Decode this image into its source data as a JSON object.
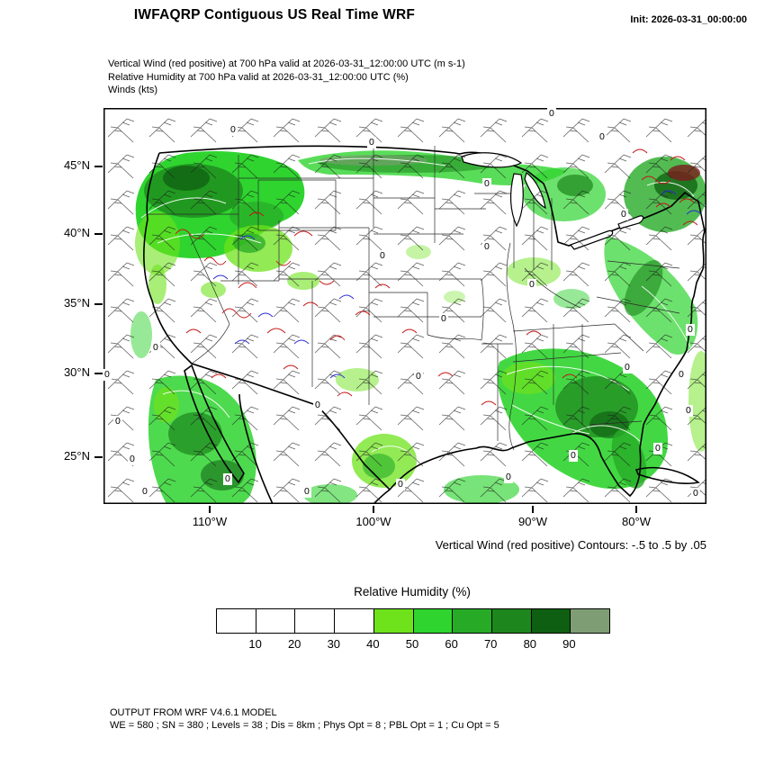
{
  "header": {
    "title": "IWFAQRP Contiguous US Real Time WRF",
    "init_label": "Init: 2026-03-31_00:00:00"
  },
  "subtitle_lines": [
    "Vertical Wind (red positive) at 700 hPa valid at 2026-03-31_12:00:00 UTC   (m s-1)",
    "Relative Humidity at 700 hPa valid at 2026-03-31_12:00:00 UTC   (%)",
    "Winds   (kts)"
  ],
  "map": {
    "lat_ticks": [
      "45°N",
      "40°N",
      "35°N",
      "30°N",
      "25°N"
    ],
    "lon_ticks": [
      "110°W",
      "100°W",
      "90°W",
      "80°W"
    ],
    "zero_labels": {
      "text": "0",
      "positions": [
        [
          18,
          350
        ],
        [
          34,
          392
        ],
        [
          6,
          298
        ],
        [
          48,
          428
        ],
        [
          140,
          414
        ],
        [
          228,
          428
        ],
        [
          332,
          420
        ],
        [
          452,
          412
        ],
        [
          584,
          290
        ],
        [
          644,
          298
        ],
        [
          652,
          338
        ],
        [
          618,
          380
        ],
        [
          524,
          388
        ],
        [
          500,
          8
        ],
        [
          556,
          34
        ],
        [
          146,
          26
        ],
        [
          300,
          40
        ],
        [
          428,
          86
        ],
        [
          312,
          166
        ],
        [
          428,
          156
        ],
        [
          478,
          198
        ],
        [
          380,
          236
        ],
        [
          654,
          248
        ],
        [
          60,
          268
        ],
        [
          352,
          300
        ],
        [
          240,
          332
        ],
        [
          660,
          430
        ],
        [
          580,
          120
        ]
      ]
    }
  },
  "annotations": {
    "contour_note": "Vertical Wind (red positive) Contours: -.5 to .5 by .05"
  },
  "colorbar": {
    "title": "Relative Humidity  (%)",
    "ticks": [
      "10",
      "20",
      "30",
      "40",
      "50",
      "60",
      "70",
      "80",
      "90"
    ],
    "colors": [
      "#ffffff",
      "#ffffff",
      "#ffffff",
      "#ffffff",
      "#6ee31c",
      "#2fd42f",
      "#27ab27",
      "#1d861d",
      "#0f5f12",
      "#7f9d74"
    ]
  },
  "footer": {
    "line1": "OUTPUT FROM WRF V4.6.1 MODEL",
    "line2": "WE = 580 ; SN = 380 ; Levels = 38 ; Dis = 8km ; Phys Opt = 8 ; PBL Opt = 1 ; Cu Opt = 5"
  },
  "chart_data": {
    "type": "heatmap",
    "title": "IWFAQRP Contiguous US Real Time WRF",
    "init_time": "2026-03-31_00:00:00",
    "valid_time": "2026-03-31_12:00:00 UTC",
    "variables": [
      {
        "name": "Vertical Wind (red positive)",
        "level": "700 hPa",
        "units": "m s-1",
        "contours": "-.5 to .5 by .05",
        "contour_label_shown": "0"
      },
      {
        "name": "Relative Humidity",
        "level": "700 hPa",
        "units": "%"
      },
      {
        "name": "Winds",
        "units": "kts",
        "style": "barbs"
      }
    ],
    "x_ticks": [
      "110°W",
      "100°W",
      "90°W",
      "80°W"
    ],
    "y_ticks": [
      "45°N",
      "40°N",
      "35°N",
      "30°N",
      "25°N"
    ],
    "legend": {
      "title": "Relative Humidity  (%)",
      "position": "bottom",
      "levels": [
        10,
        20,
        30,
        40,
        50,
        60,
        70,
        80,
        90
      ],
      "colors": [
        "#ffffff",
        "#ffffff",
        "#ffffff",
        "#ffffff",
        "#6ee31c",
        "#2fd42f",
        "#27ab27",
        "#1d861d",
        "#0f5f12",
        "#7f9d74"
      ]
    },
    "model_info": "OUTPUT FROM WRF V4.6.1 MODEL ; WE = 580 ; SN = 380 ; Levels = 38 ; Dis = 8km ; Phys Opt = 8 ; PBL Opt = 1 ; Cu Opt = 5"
  }
}
